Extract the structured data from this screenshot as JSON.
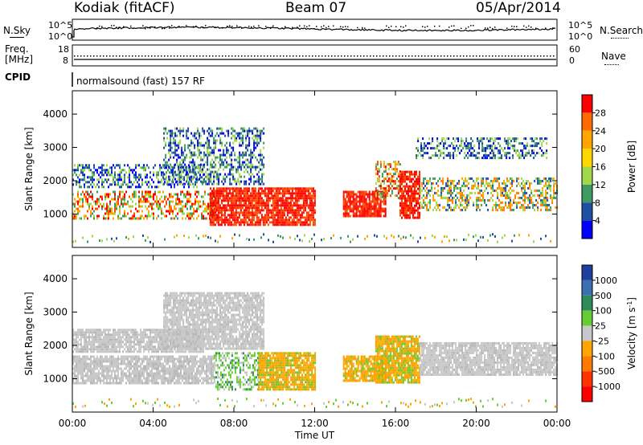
{
  "header": {
    "station": "Kodiak (fitACF)",
    "beam": "Beam 07",
    "date": "05/Apr/2014"
  },
  "top_panels": {
    "nsky_label": "N.Sky",
    "nsearch_label": "N.Search",
    "noise_ticks": [
      "10^5",
      "10^0"
    ],
    "freq_label": "Freq.",
    "freq_unit": "[MHz]",
    "freq_ticks": [
      "18",
      "8"
    ],
    "nave_label": "Nave",
    "nave_ticks": [
      "60",
      "0"
    ],
    "cpid_label": "CPID",
    "cpid_value": "normalsound (fast) 157 RF"
  },
  "chart_data": [
    {
      "type": "heatmap",
      "title": "",
      "ylabel": "Slant Range [km]",
      "xlabel": "",
      "x_ticks": [
        "00:00",
        "04:00",
        "08:00",
        "12:00",
        "16:00",
        "20:00",
        "00:00"
      ],
      "y_ticks": [
        "1000",
        "2000",
        "3000",
        "4000"
      ],
      "xlim": [
        0,
        24
      ],
      "ylim": [
        0,
        4700
      ],
      "colorbar": {
        "label": "Power [dB]",
        "ticks": [
          "28",
          "24",
          "20",
          "16",
          "12",
          "8",
          "4"
        ],
        "colors": [
          "#ff0000",
          "#ff6a00",
          "#ffa500",
          "#ffd700",
          "#a0d84a",
          "#3e9a63",
          "#1f4fa0",
          "#0000ff"
        ]
      },
      "scatter_bands": [
        {
          "t0": 0.0,
          "t1": 7.2,
          "r0": 850,
          "r1": 1700,
          "level": "high"
        },
        {
          "t0": 6.8,
          "t1": 12.0,
          "r0": 700,
          "r1": 1800,
          "level": "max"
        },
        {
          "t0": 13.4,
          "t1": 15.5,
          "r0": 950,
          "r1": 1700,
          "level": "max"
        },
        {
          "t0": 15.0,
          "t1": 16.2,
          "r0": 1500,
          "r1": 2600,
          "level": "high"
        },
        {
          "t0": 16.2,
          "t1": 17.2,
          "r0": 900,
          "r1": 2300,
          "level": "max"
        },
        {
          "t0": 17.2,
          "t1": 24.0,
          "r0": 1100,
          "r1": 2100,
          "level": "mid"
        },
        {
          "t0": 0.0,
          "t1": 6.5,
          "r0": 1800,
          "r1": 2500,
          "level": "low"
        },
        {
          "t0": 17.0,
          "t1": 23.5,
          "r0": 2700,
          "r1": 3300,
          "level": "low"
        },
        {
          "t0": 4.5,
          "t1": 9.5,
          "r0": 1900,
          "r1": 3600,
          "level": "low"
        }
      ]
    },
    {
      "type": "heatmap",
      "title": "",
      "ylabel": "Slant Range [km]",
      "xlabel": "Time UT",
      "x_ticks": [
        "00:00",
        "04:00",
        "08:00",
        "12:00",
        "16:00",
        "20:00",
        "00:00"
      ],
      "y_ticks": [
        "1000",
        "2000",
        "3000",
        "4000"
      ],
      "xlim": [
        0,
        24
      ],
      "ylim": [
        0,
        4700
      ],
      "colorbar": {
        "label": "Velocity [m s-1]",
        "label_main": "Velocity [m s",
        "label_sup": "-1",
        "label_end": "]",
        "ticks": [
          "1000",
          "500",
          "100",
          "25",
          "-25",
          "-100",
          "-500",
          "-1000"
        ],
        "colors": [
          "#1f3f9f",
          "#3a6fb0",
          "#2f8a5a",
          "#66cc33",
          "#c8c8c8",
          "#ffa500",
          "#ff7a00",
          "#ff3300",
          "#ff0000"
        ]
      },
      "scatter_bands": [
        {
          "t0": 0.0,
          "t1": 7.0,
          "r0": 850,
          "r1": 1700,
          "level": "gray"
        },
        {
          "t0": 7.0,
          "t1": 9.2,
          "r0": 700,
          "r1": 1800,
          "level": "green"
        },
        {
          "t0": 9.2,
          "t1": 12.0,
          "r0": 700,
          "r1": 1800,
          "level": "orange"
        },
        {
          "t0": 13.4,
          "t1": 15.5,
          "r0": 950,
          "r1": 1700,
          "level": "orange"
        },
        {
          "t0": 15.0,
          "t1": 17.2,
          "r0": 900,
          "r1": 2300,
          "level": "orange"
        },
        {
          "t0": 17.2,
          "t1": 24.0,
          "r0": 1100,
          "r1": 2100,
          "level": "gray"
        },
        {
          "t0": 0.0,
          "t1": 6.5,
          "r0": 1800,
          "r1": 2500,
          "level": "gray"
        },
        {
          "t0": 4.5,
          "t1": 9.5,
          "r0": 1900,
          "r1": 3600,
          "level": "gray"
        }
      ]
    }
  ]
}
